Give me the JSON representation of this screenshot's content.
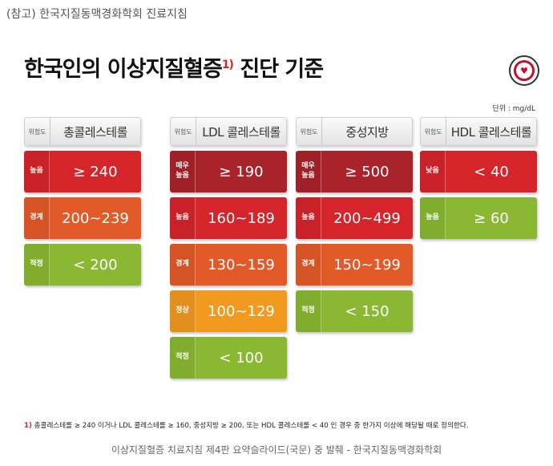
{
  "top_note": "(참고) 한국지질동맥경화학회 진료지침",
  "title": "한국인의 이상지질혈증",
  "title_mark": "1)",
  "title_suffix": " 진단 기준",
  "unit": "단위 : mg/dL",
  "colors": {
    "very_high": "#a9232a",
    "high": "#d6242b",
    "borderline": "#e25a28",
    "normal": "#f09a1f",
    "optimal": "#8ab832"
  },
  "columns": [
    {
      "header_tag": "위험도",
      "header_name": "총콜레스테롤",
      "cells": [
        {
          "level": "높음",
          "value": "≥ 240",
          "color": "high"
        },
        {
          "level": "경계",
          "value": "200~239",
          "color": "borderline"
        },
        {
          "level": "적정",
          "value": "< 200",
          "color": "optimal"
        }
      ]
    },
    {
      "header_tag": "위험도",
      "header_name": "LDL 콜레스테롤",
      "cells": [
        {
          "level": "매우 높음",
          "value": "≥ 190",
          "color": "very_high"
        },
        {
          "level": "높음",
          "value": "160~189",
          "color": "high"
        },
        {
          "level": "경계",
          "value": "130~159",
          "color": "borderline"
        },
        {
          "level": "정상",
          "value": "100~129",
          "color": "normal"
        },
        {
          "level": "적정",
          "value": "< 100",
          "color": "optimal"
        }
      ]
    },
    {
      "header_tag": "위험도",
      "header_name": "중성지방",
      "cells": [
        {
          "level": "매우 높음",
          "value": "≥ 500",
          "color": "very_high"
        },
        {
          "level": "높음",
          "value": "200~499",
          "color": "high"
        },
        {
          "level": "경계",
          "value": "150~199",
          "color": "borderline"
        },
        {
          "level": "적정",
          "value": "< 150",
          "color": "optimal"
        }
      ]
    },
    {
      "header_tag": "위험도",
      "header_name": "HDL 콜레스테롤",
      "cells": [
        {
          "level": "낮음",
          "value": "< 40",
          "color": "high"
        },
        {
          "level": "높음",
          "value": "≥ 60",
          "color": "optimal"
        }
      ]
    }
  ],
  "footnote_mark": "1)",
  "footnote": " 총콜레스테롤 ≥ 240 이거나 LDL 콜레스테롤 ≥ 160, 중성지방 ≥ 200, 또는 HDL 콜레스테롤 < 40 인 경우 중 한가지 이상에 해당될 때로 정의한다.",
  "caption": "이상지질혈증 치료지침 제4판 요약슬라이드(국문) 중 발췌 - 한국지질동맥경화학회",
  "logo_icon": "korean-society-logo-icon"
}
